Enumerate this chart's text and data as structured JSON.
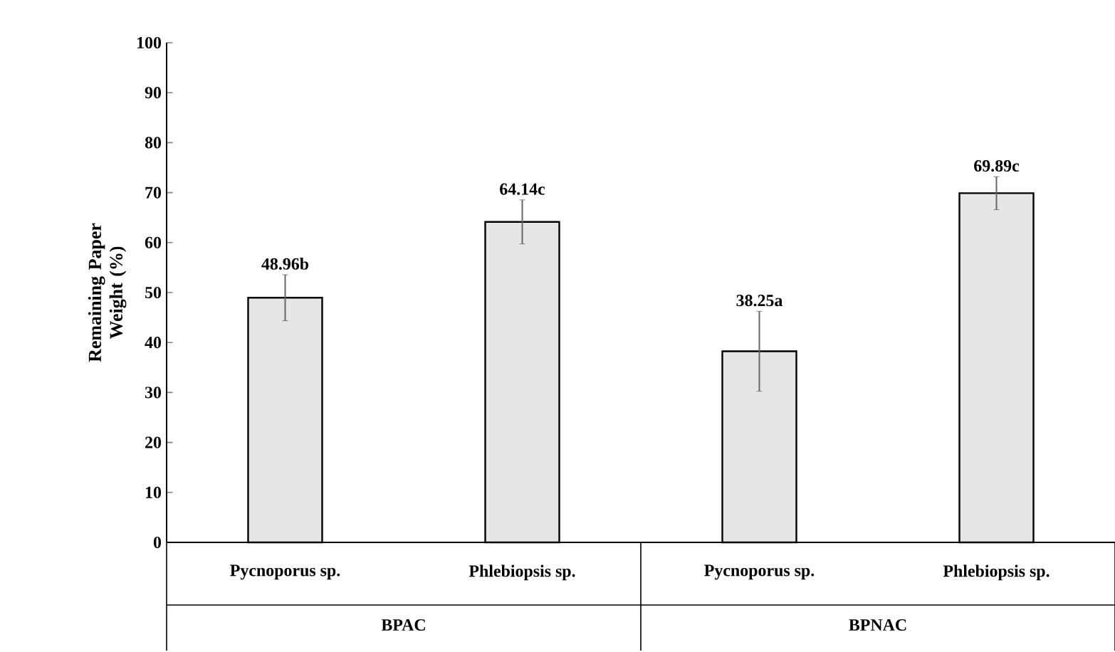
{
  "chart_data": {
    "type": "bar",
    "ylabel": "Remaining Paper Weight (%)",
    "categories": [
      "Pycnoporus sp.",
      "Phlebiopsis sp.",
      "Pycnoporus sp.",
      "Phlebiopsis sp."
    ],
    "values": [
      48.96,
      64.14,
      38.25,
      69.89
    ],
    "errors": [
      4.6,
      4.4,
      8,
      3.3
    ],
    "value_labels": [
      "48.96b",
      "64.14c",
      "38.25a",
      "69.89c"
    ],
    "color": "#e6e6e6",
    "annotations": [
      "BPAC",
      "BPNAC"
    ],
    "ylim": [
      0,
      100
    ],
    "yticks": [
      0,
      10,
      20,
      30,
      40,
      50,
      60,
      70,
      80,
      90,
      100
    ],
    "grid": false
  }
}
